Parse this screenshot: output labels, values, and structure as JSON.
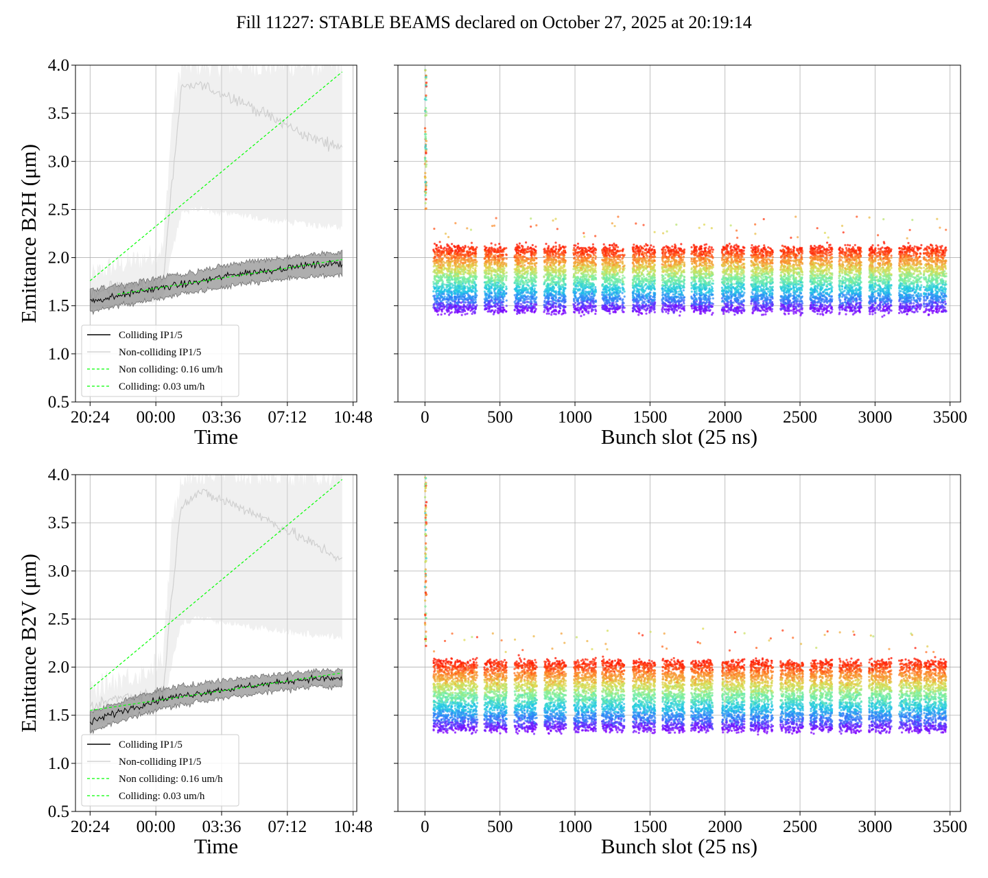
{
  "title": "Fill 11227: STABLE BEAMS declared on October 27, 2025 at 20:19:14",
  "chart_data": [
    {
      "id": "time-b2h",
      "type": "line",
      "xlabel": "Time",
      "ylabel": "Emittance B2H (μm)",
      "ylim": [
        0.5,
        4.0
      ],
      "yticks": [
        "0.5",
        "1.0",
        "1.5",
        "2.0",
        "2.5",
        "3.0",
        "3.5",
        "4.0"
      ],
      "xticks": [
        "20:24",
        "00:00",
        "03:36",
        "07:12",
        "10:48"
      ],
      "xlim_hours": [
        -0.8,
        14.6
      ],
      "grid": true,
      "legend_position": "lower-left",
      "series": [
        {
          "name": "Colliding IP1/5",
          "color": "#000000",
          "x_hours": [
            0,
            1,
            2,
            3,
            4,
            5,
            6,
            7,
            8,
            9,
            10,
            11,
            12,
            13.8
          ],
          "y": [
            1.55,
            1.58,
            1.62,
            1.66,
            1.69,
            1.72,
            1.75,
            1.79,
            1.83,
            1.85,
            1.87,
            1.9,
            1.92,
            1.94
          ],
          "band_low": [
            1.45,
            1.48,
            1.52,
            1.55,
            1.58,
            1.62,
            1.65,
            1.68,
            1.71,
            1.74,
            1.76,
            1.78,
            1.8,
            1.82
          ],
          "band_high": [
            1.66,
            1.69,
            1.72,
            1.76,
            1.8,
            1.83,
            1.86,
            1.9,
            1.94,
            1.96,
            1.98,
            2.0,
            2.03,
            2.06
          ]
        },
        {
          "name": "Non-colliding IP1/5",
          "color": "#d3d3d3",
          "x_hours": [
            0,
            1,
            2,
            3,
            4,
            4.5,
            5,
            6,
            7,
            8,
            9,
            10,
            11,
            12,
            13.8
          ],
          "y": [
            1.6,
            1.68,
            1.72,
            1.7,
            1.75,
            2.8,
            3.75,
            3.8,
            3.72,
            3.65,
            3.55,
            3.45,
            3.35,
            3.25,
            3.15
          ],
          "band_low": [
            1.5,
            1.52,
            1.55,
            1.56,
            1.6,
            2.1,
            2.5,
            2.55,
            2.5,
            2.48,
            2.45,
            2.42,
            2.4,
            2.38,
            2.35
          ],
          "band_high": [
            1.8,
            1.9,
            1.95,
            2.0,
            2.1,
            3.5,
            4.0,
            4.0,
            4.0,
            4.0,
            4.0,
            4.0,
            4.0,
            4.0,
            4.0
          ]
        },
        {
          "name": "Non colliding: 0.16 um/h",
          "color": "#00ff00",
          "style": "dashed",
          "x_hours": [
            0,
            13.8
          ],
          "y": [
            1.76,
            3.93
          ]
        },
        {
          "name": "Colliding: 0.03 um/h",
          "color": "#00ff00",
          "style": "dashed",
          "x_hours": [
            1.5,
            13.8
          ],
          "y": [
            1.62,
            1.98
          ]
        }
      ]
    },
    {
      "id": "slot-b2h",
      "type": "scatter",
      "xlabel": "Bunch slot (25 ns)",
      "ylim": [
        0.5,
        4.0
      ],
      "xlim": [
        -180,
        3570
      ],
      "xticks": [
        "0",
        "500",
        "1000",
        "1500",
        "2000",
        "2500",
        "3000",
        "3500"
      ],
      "grid": true,
      "color_scale": "rainbow",
      "trains_start": [
        55,
        200,
        395,
        595,
        790,
        990,
        1180,
        1385,
        1580,
        1775,
        1980,
        2170,
        2370,
        2565,
        2760,
        2960,
        3160,
        3325
      ],
      "train_length": 150,
      "band_low": 1.45,
      "band_high": 2.1,
      "pilot_range": [
        2.5,
        3.95
      ]
    },
    {
      "id": "time-b2v",
      "type": "line",
      "xlabel": "Time",
      "ylabel": "Emittance B2V (μm)",
      "ylim": [
        0.5,
        4.0
      ],
      "yticks": [
        "0.5",
        "1.0",
        "1.5",
        "2.0",
        "2.5",
        "3.0",
        "3.5",
        "4.0"
      ],
      "xticks": [
        "20:24",
        "00:00",
        "03:36",
        "07:12",
        "10:48"
      ],
      "xlim_hours": [
        -0.8,
        14.6
      ],
      "grid": true,
      "legend_position": "lower-left",
      "series": [
        {
          "name": "Colliding IP1/5",
          "color": "#000000",
          "x_hours": [
            0,
            1,
            2,
            3,
            4,
            5,
            6,
            7,
            8,
            9,
            10,
            11,
            12,
            13.8
          ],
          "y": [
            1.42,
            1.5,
            1.56,
            1.62,
            1.67,
            1.7,
            1.73,
            1.76,
            1.78,
            1.81,
            1.83,
            1.86,
            1.88,
            1.88
          ],
          "band_low": [
            1.32,
            1.4,
            1.46,
            1.52,
            1.57,
            1.61,
            1.64,
            1.67,
            1.7,
            1.72,
            1.75,
            1.77,
            1.79,
            1.8
          ],
          "band_high": [
            1.52,
            1.6,
            1.66,
            1.72,
            1.77,
            1.8,
            1.83,
            1.86,
            1.88,
            1.9,
            1.92,
            1.94,
            1.96,
            1.97
          ]
        },
        {
          "name": "Non-colliding IP1/5",
          "color": "#d3d3d3",
          "x_hours": [
            0,
            1,
            2,
            3,
            4,
            4.5,
            5,
            6,
            7,
            8,
            9,
            10,
            11,
            12,
            13.8
          ],
          "y": [
            1.55,
            1.65,
            1.7,
            1.72,
            1.75,
            2.8,
            3.7,
            3.82,
            3.75,
            3.68,
            3.6,
            3.5,
            3.4,
            3.3,
            3.12
          ],
          "band_low": [
            1.45,
            1.5,
            1.55,
            1.58,
            1.6,
            2.1,
            2.5,
            2.55,
            2.5,
            2.48,
            2.45,
            2.42,
            2.4,
            2.38,
            2.35
          ],
          "band_high": [
            1.75,
            1.85,
            1.9,
            1.95,
            2.1,
            3.5,
            4.0,
            4.0,
            4.0,
            4.0,
            4.0,
            4.0,
            4.0,
            4.0,
            4.0
          ]
        },
        {
          "name": "Non colliding: 0.16 um/h",
          "color": "#00ff00",
          "style": "dashed",
          "x_hours": [
            0,
            13.8
          ],
          "y": [
            1.77,
            3.95
          ]
        },
        {
          "name": "Colliding: 0.03 um/h",
          "color": "#00ff00",
          "style": "dashed",
          "x_hours": [
            0,
            13.8
          ],
          "y": [
            1.55,
            1.94
          ]
        }
      ]
    },
    {
      "id": "slot-b2v",
      "type": "scatter",
      "xlabel": "Bunch slot (25 ns)",
      "ylim": [
        0.5,
        4.0
      ],
      "xlim": [
        -180,
        3570
      ],
      "xticks": [
        "0",
        "500",
        "1000",
        "1500",
        "2000",
        "2500",
        "3000",
        "3500"
      ],
      "grid": true,
      "color_scale": "rainbow",
      "trains_start": [
        55,
        200,
        395,
        595,
        790,
        990,
        1180,
        1385,
        1580,
        1775,
        1980,
        2170,
        2370,
        2565,
        2760,
        2960,
        3160,
        3325
      ],
      "train_length": 150,
      "band_low": 1.35,
      "band_high": 2.05,
      "pilot_range": [
        2.2,
        3.98
      ]
    }
  ]
}
